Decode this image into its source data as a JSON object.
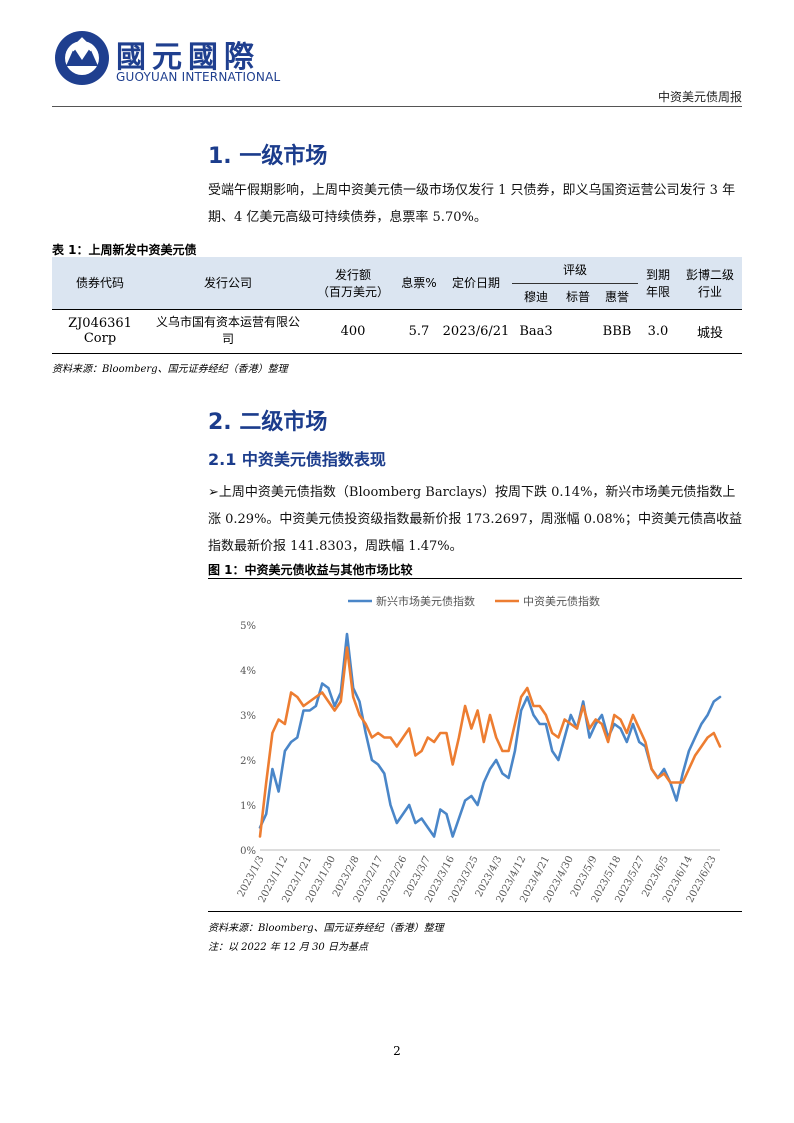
{
  "header": {
    "logo_cn": "國元國際",
    "logo_en": "GUOYUAN INTERNATIONAL",
    "report_title": "中资美元债周报"
  },
  "section1": {
    "title": "1.  一级市场",
    "text": "受端午假期影响，上周中资美元债一级市场仅发行 1 只债券，即义乌国资运营公司发行 3 年期、4 亿美元高级可持续债券，息票率 5.70%。"
  },
  "table1": {
    "caption": "表 1：上周新发中资美元债",
    "headers": {
      "code": "债券代码",
      "issuer": "发行公司",
      "amount_l1": "发行额",
      "amount_l2": "（百万美元）",
      "coupon": "息票%",
      "price_date": "定价日期",
      "rating": "评级",
      "moodys": "穆迪",
      "sp": "标普",
      "fitch": "惠誉",
      "tenor_l1": "到期",
      "tenor_l2": "年限",
      "industry_l1": "彭博二级",
      "industry_l2": "行业"
    },
    "rows": [
      {
        "code": "ZJ046361 Corp",
        "issuer": "义乌市国有资本运营有限公司",
        "amount": "400",
        "coupon": "5.7",
        "price_date": "2023/6/21",
        "moodys": "Baa3",
        "sp": "",
        "fitch": "BBB",
        "tenor": "3.0",
        "industry": "城投"
      }
    ],
    "source": "资料来源：Bloomberg、国元证券经纪（香港）整理"
  },
  "section2": {
    "title": "2.  二级市场",
    "subtitle": "2.1   中资美元债指数表现",
    "bullet": "➢",
    "text": "上周中资美元债指数（Bloomberg Barclays）按周下跌 0.14%，新兴市场美元债指数上涨 0.29%。中资美元债投资级指数最新价报 173.2697，周涨幅 0.08%；中资美元债高收益指数最新价报 141.8303，周跌幅 1.47%。"
  },
  "figure1": {
    "caption": "图 1：中资美元债收益与其他市场比较",
    "source": "资料来源：Bloomberg、国元证券经纪（香港）整理",
    "note": "注：以 2022 年 12 月 30 日为基点"
  },
  "chart_data": {
    "type": "line",
    "title": "",
    "xlabel": "",
    "ylabel": "",
    "ylim": [
      0,
      5
    ],
    "yticks": [
      "0%",
      "1%",
      "2%",
      "3%",
      "4%",
      "5%"
    ],
    "x_tick_labels": [
      "2023/1/3",
      "2023/1/12",
      "2023/1/21",
      "2023/1/30",
      "2023/2/8",
      "2023/2/17",
      "2023/2/26",
      "2023/3/7",
      "2023/3/16",
      "2023/3/25",
      "2023/4/3",
      "2023/4/12",
      "2023/4/21",
      "2023/4/30",
      "2023/5/9",
      "2023/5/18",
      "2023/5/27",
      "2023/6/5",
      "2023/6/14",
      "2023/6/23"
    ],
    "legend_position": "top",
    "grid": false,
    "series": [
      {
        "name": "新兴市场美元债指数",
        "color": "#4a86c8",
        "points": [
          [
            0,
            0.5
          ],
          [
            1,
            0.8
          ],
          [
            2,
            1.8
          ],
          [
            3,
            1.3
          ],
          [
            4,
            2.2
          ],
          [
            5,
            2.4
          ],
          [
            6,
            2.5
          ],
          [
            7,
            3.1
          ],
          [
            8,
            3.1
          ],
          [
            9,
            3.2
          ],
          [
            10,
            3.7
          ],
          [
            11,
            3.6
          ],
          [
            12,
            3.2
          ],
          [
            13,
            3.5
          ],
          [
            14,
            4.8
          ],
          [
            15,
            3.6
          ],
          [
            16,
            3.3
          ],
          [
            17,
            2.6
          ],
          [
            18,
            2.0
          ],
          [
            19,
            1.9
          ],
          [
            20,
            1.7
          ],
          [
            21,
            1.0
          ],
          [
            22,
            0.6
          ],
          [
            23,
            0.8
          ],
          [
            24,
            1.0
          ],
          [
            25,
            0.6
          ],
          [
            26,
            0.7
          ],
          [
            27,
            0.5
          ],
          [
            28,
            0.3
          ],
          [
            29,
            0.9
          ],
          [
            30,
            0.8
          ],
          [
            31,
            0.3
          ],
          [
            32,
            0.7
          ],
          [
            33,
            1.1
          ],
          [
            34,
            1.2
          ],
          [
            35,
            1.0
          ],
          [
            36,
            1.5
          ],
          [
            37,
            1.8
          ],
          [
            38,
            2.0
          ],
          [
            39,
            1.7
          ],
          [
            40,
            1.6
          ],
          [
            41,
            2.2
          ],
          [
            42,
            3.1
          ],
          [
            43,
            3.4
          ],
          [
            44,
            3.0
          ],
          [
            45,
            2.8
          ],
          [
            46,
            2.8
          ],
          [
            47,
            2.2
          ],
          [
            48,
            2.0
          ],
          [
            49,
            2.5
          ],
          [
            50,
            3.0
          ],
          [
            51,
            2.7
          ],
          [
            52,
            3.3
          ],
          [
            53,
            2.5
          ],
          [
            54,
            2.8
          ],
          [
            55,
            3.0
          ],
          [
            56,
            2.5
          ],
          [
            57,
            2.8
          ],
          [
            58,
            2.7
          ],
          [
            59,
            2.4
          ],
          [
            60,
            2.8
          ],
          [
            61,
            2.4
          ],
          [
            62,
            2.3
          ],
          [
            63,
            1.8
          ],
          [
            64,
            1.6
          ],
          [
            65,
            1.8
          ],
          [
            66,
            1.5
          ],
          [
            67,
            1.1
          ],
          [
            68,
            1.7
          ],
          [
            69,
            2.2
          ],
          [
            70,
            2.5
          ],
          [
            71,
            2.8
          ],
          [
            72,
            3.0
          ],
          [
            73,
            3.3
          ],
          [
            74,
            3.4
          ]
        ]
      },
      {
        "name": "中资美元债指数",
        "color": "#ed7d31",
        "points": [
          [
            0,
            0.3
          ],
          [
            1,
            1.5
          ],
          [
            2,
            2.6
          ],
          [
            3,
            2.9
          ],
          [
            4,
            2.8
          ],
          [
            5,
            3.5
          ],
          [
            6,
            3.4
          ],
          [
            7,
            3.2
          ],
          [
            8,
            3.3
          ],
          [
            9,
            3.4
          ],
          [
            10,
            3.5
          ],
          [
            11,
            3.3
          ],
          [
            12,
            3.1
          ],
          [
            13,
            3.3
          ],
          [
            14,
            4.5
          ],
          [
            15,
            3.4
          ],
          [
            16,
            3.0
          ],
          [
            17,
            2.8
          ],
          [
            18,
            2.5
          ],
          [
            19,
            2.6
          ],
          [
            20,
            2.5
          ],
          [
            21,
            2.5
          ],
          [
            22,
            2.3
          ],
          [
            23,
            2.5
          ],
          [
            24,
            2.7
          ],
          [
            25,
            2.1
          ],
          [
            26,
            2.2
          ],
          [
            27,
            2.5
          ],
          [
            28,
            2.4
          ],
          [
            29,
            2.6
          ],
          [
            30,
            2.6
          ],
          [
            31,
            1.9
          ],
          [
            32,
            2.5
          ],
          [
            33,
            3.2
          ],
          [
            34,
            2.7
          ],
          [
            35,
            3.1
          ],
          [
            36,
            2.4
          ],
          [
            37,
            3.0
          ],
          [
            38,
            2.5
          ],
          [
            39,
            2.2
          ],
          [
            40,
            2.2
          ],
          [
            41,
            2.8
          ],
          [
            42,
            3.4
          ],
          [
            43,
            3.6
          ],
          [
            44,
            3.2
          ],
          [
            45,
            3.2
          ],
          [
            46,
            3.0
          ],
          [
            47,
            2.6
          ],
          [
            48,
            2.5
          ],
          [
            49,
            2.9
          ],
          [
            50,
            2.8
          ],
          [
            51,
            2.7
          ],
          [
            52,
            3.2
          ],
          [
            53,
            2.7
          ],
          [
            54,
            2.9
          ],
          [
            55,
            2.8
          ],
          [
            56,
            2.4
          ],
          [
            57,
            3.0
          ],
          [
            58,
            2.9
          ],
          [
            59,
            2.6
          ],
          [
            60,
            3.0
          ],
          [
            61,
            2.7
          ],
          [
            62,
            2.4
          ],
          [
            63,
            1.8
          ],
          [
            64,
            1.6
          ],
          [
            65,
            1.7
          ],
          [
            66,
            1.5
          ],
          [
            67,
            1.5
          ],
          [
            68,
            1.5
          ],
          [
            69,
            1.8
          ],
          [
            70,
            2.1
          ],
          [
            71,
            2.3
          ],
          [
            72,
            2.5
          ],
          [
            73,
            2.6
          ],
          [
            74,
            2.3
          ]
        ]
      }
    ]
  },
  "page": {
    "number": "2"
  }
}
